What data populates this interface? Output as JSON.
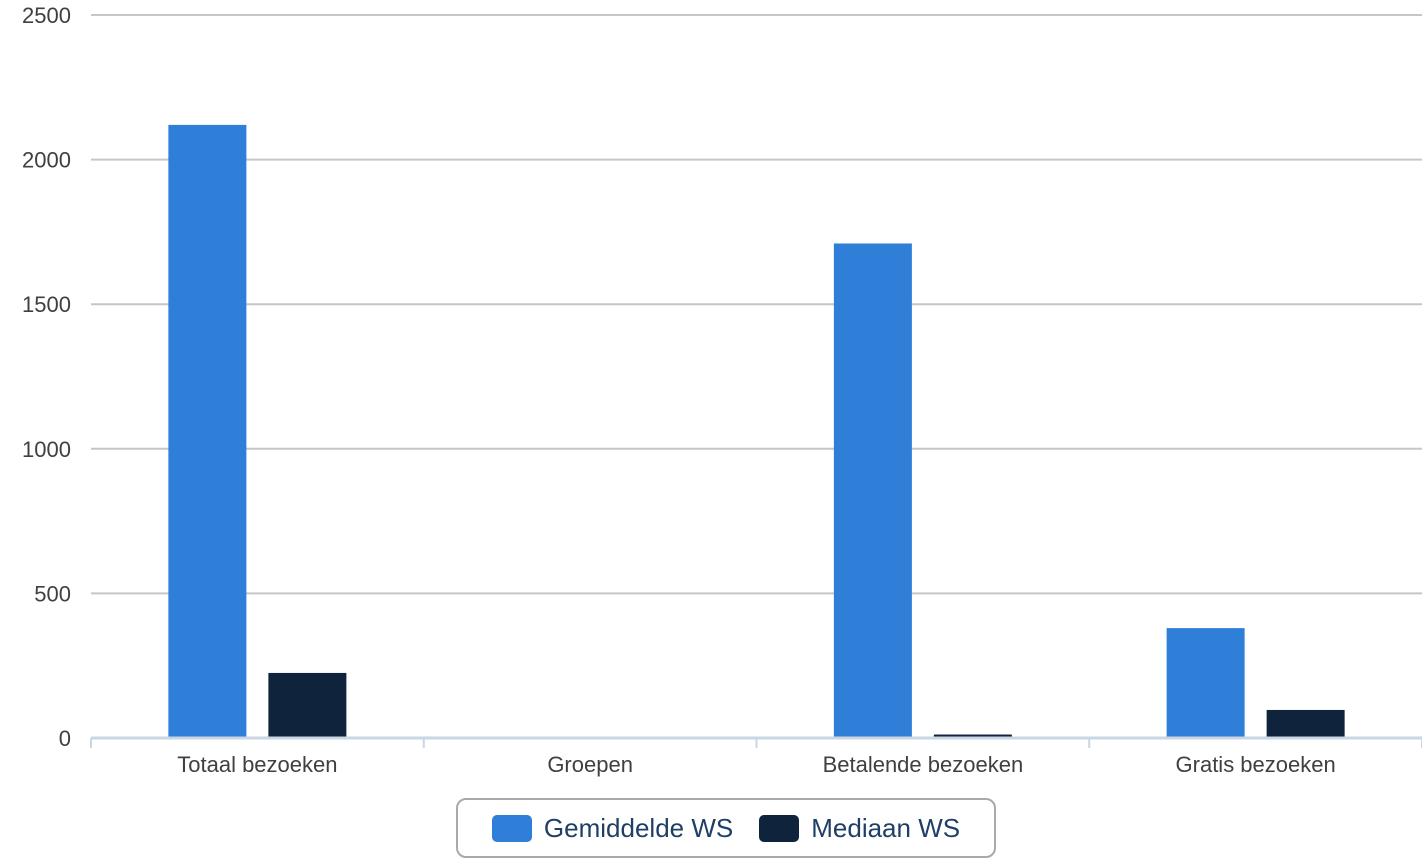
{
  "chart_data": {
    "type": "bar",
    "title": "",
    "xlabel": "",
    "ylabel": "",
    "categories": [
      "Totaal bezoeken",
      "Groepen",
      "Betalende bezoeken",
      "Gratis bezoeken"
    ],
    "series": [
      {
        "name": "Gemiddelde WS",
        "color": "#2f7fd9",
        "values": [
          2120,
          3,
          1710,
          380
        ]
      },
      {
        "name": "Mediaan WS",
        "color": "#0f233d",
        "values": [
          225,
          0,
          12,
          97
        ]
      }
    ],
    "ylim": [
      0,
      2500
    ],
    "yticks": [
      0,
      500,
      1000,
      1500,
      2000,
      2500
    ],
    "grid": true,
    "legend_position": "bottom"
  }
}
